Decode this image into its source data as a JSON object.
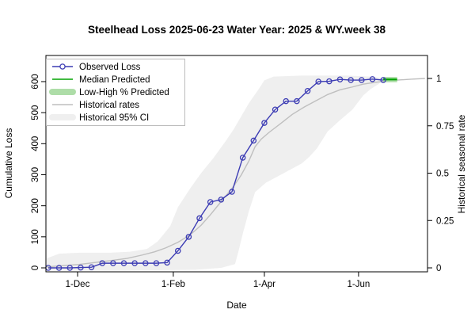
{
  "title": "Steelhead Loss 2025-06-23  Water Year: 2025 & WY.week 38",
  "colors": {
    "observed": "#3C3CB4",
    "median": "#00A400",
    "low_high": "#AEDDA8",
    "historical_line": "#BFBFBF",
    "historical_ci": "#EFEFEF",
    "axis": "#000000",
    "legend_border": "#BBBBBB"
  },
  "chart_data": {
    "type": "line",
    "title": "Steelhead Loss 2025-06-23  Water Year: 2025 & WY.week 38",
    "xlabel": "Date",
    "ylabel_left": "Cumulative Loss",
    "ylabel_right": "Historical seasonal rate",
    "grid": false,
    "x_range": [
      "2024-11-10",
      "2025-07-15"
    ],
    "x_ticks": [
      {
        "label": "1-Dec",
        "date": "2024-12-01"
      },
      {
        "label": "1-Feb",
        "date": "2025-02-01"
      },
      {
        "label": "1-Apr",
        "date": "2025-04-01"
      },
      {
        "label": "1-Jun",
        "date": "2025-06-01"
      }
    ],
    "y_left_ticks": [
      0,
      100,
      200,
      300,
      400,
      500,
      600
    ],
    "y_left_lim": [
      0,
      620
    ],
    "y_right_ticks": [
      0,
      0.25,
      0.5,
      0.75,
      1
    ],
    "rate_to_loss_equiv": 610,
    "legend": [
      {
        "label": "Observed Loss",
        "type": "line-circle",
        "color": "#3C3CB4"
      },
      {
        "label": "Median Predicted",
        "type": "line",
        "color": "#00A400"
      },
      {
        "label": "Low-High % Predicted",
        "type": "band",
        "color": "#AEDDA8"
      },
      {
        "label": "Historical rates",
        "type": "line",
        "color": "#BFBFBF"
      },
      {
        "label": "Historical 95% CI",
        "type": "band",
        "color": "#EFEFEF"
      }
    ],
    "series": {
      "observed_loss": {
        "name": "Observed Loss",
        "dates": [
          "2024-11-12",
          "2024-11-19",
          "2024-11-26",
          "2024-12-03",
          "2024-12-10",
          "2024-12-17",
          "2024-12-24",
          "2024-12-31",
          "2025-01-07",
          "2025-01-14",
          "2025-01-21",
          "2025-01-28",
          "2025-02-04",
          "2025-02-11",
          "2025-02-18",
          "2025-02-25",
          "2025-03-04",
          "2025-03-11",
          "2025-03-18",
          "2025-03-25",
          "2025-04-01",
          "2025-04-08",
          "2025-04-15",
          "2025-04-22",
          "2025-04-29",
          "2025-05-06",
          "2025-05-13",
          "2025-05-20",
          "2025-05-27",
          "2025-06-03",
          "2025-06-10",
          "2025-06-17"
        ],
        "values": [
          0,
          0,
          0,
          1,
          2,
          15,
          15,
          15,
          15,
          15,
          15,
          17,
          55,
          100,
          160,
          212,
          220,
          245,
          355,
          410,
          467,
          510,
          537,
          537,
          570,
          600,
          601,
          607,
          605,
          605,
          608,
          605
        ]
      },
      "median_predicted": {
        "name": "Median Predicted",
        "dates": [
          "2025-06-17",
          "2025-06-26"
        ],
        "values": [
          607,
          607
        ]
      },
      "low_high_predicted": {
        "name": "Low-High % Predicted",
        "dates": [
          "2025-06-17",
          "2025-06-26"
        ],
        "low": 598,
        "high": 615
      },
      "historical_rates": {
        "name": "Historical rates",
        "dates": [
          "2024-11-11",
          "2024-11-22",
          "2024-12-02",
          "2024-12-12",
          "2024-12-22",
          "2025-01-02",
          "2025-01-12",
          "2025-01-20",
          "2025-01-27",
          "2025-02-04",
          "2025-02-12",
          "2025-02-19",
          "2025-02-25",
          "2025-03-02",
          "2025-03-07",
          "2025-03-12",
          "2025-03-17",
          "2025-03-22",
          "2025-03-26",
          "2025-03-30",
          "2025-04-04",
          "2025-04-12",
          "2025-04-19",
          "2025-04-27",
          "2025-05-05",
          "2025-05-12",
          "2025-05-20",
          "2025-05-28",
          "2025-06-04",
          "2025-06-12",
          "2025-06-20",
          "2025-06-27",
          "2025-07-05",
          "2025-07-14"
        ],
        "rates": [
          0.005,
          0.012,
          0.018,
          0.028,
          0.038,
          0.05,
          0.068,
          0.085,
          0.105,
          0.135,
          0.175,
          0.225,
          0.28,
          0.33,
          0.38,
          0.43,
          0.49,
          0.565,
          0.64,
          0.68,
          0.715,
          0.765,
          0.81,
          0.85,
          0.885,
          0.915,
          0.94,
          0.955,
          0.97,
          0.98,
          0.987,
          0.992,
          0.996,
          1.0
        ]
      },
      "historical_ci": {
        "name": "Historical 95% CI",
        "upper_dates": [
          "2024-11-11",
          "2024-11-19",
          "2024-12-02",
          "2024-12-22",
          "2025-01-04",
          "2025-01-15",
          "2025-01-22",
          "2025-01-30",
          "2025-02-04",
          "2025-02-12",
          "2025-02-19",
          "2025-02-27",
          "2025-03-07",
          "2025-03-12",
          "2025-03-17",
          "2025-03-22",
          "2025-03-28",
          "2025-04-01",
          "2025-04-07",
          "2025-04-25",
          "2025-05-25",
          "2025-06-09",
          "2025-06-18"
        ],
        "upper": [
          0.05,
          0.075,
          0.08,
          0.08,
          0.085,
          0.1,
          0.14,
          0.22,
          0.32,
          0.42,
          0.5,
          0.58,
          0.67,
          0.73,
          0.8,
          0.87,
          0.94,
          0.99,
          1.01,
          1.015,
          1.015,
          1.01,
          1.0
        ],
        "lower_dates": [
          "2024-11-11",
          "2025-01-01",
          "2025-02-15",
          "2025-03-04",
          "2025-03-13",
          "2025-03-15",
          "2025-03-18",
          "2025-03-22",
          "2025-03-26",
          "2025-04-02",
          "2025-04-09",
          "2025-04-17",
          "2025-04-25",
          "2025-04-30",
          "2025-05-05",
          "2025-05-12",
          "2025-05-20",
          "2025-05-28",
          "2025-06-04",
          "2025-06-09",
          "2025-06-14",
          "2025-06-18"
        ],
        "lower": [
          -0.015,
          -0.015,
          -0.01,
          0.0,
          0.02,
          0.08,
          0.18,
          0.3,
          0.4,
          0.45,
          0.48,
          0.515,
          0.55,
          0.585,
          0.63,
          0.72,
          0.78,
          0.835,
          0.91,
          0.945,
          0.97,
          1.0
        ]
      }
    }
  }
}
